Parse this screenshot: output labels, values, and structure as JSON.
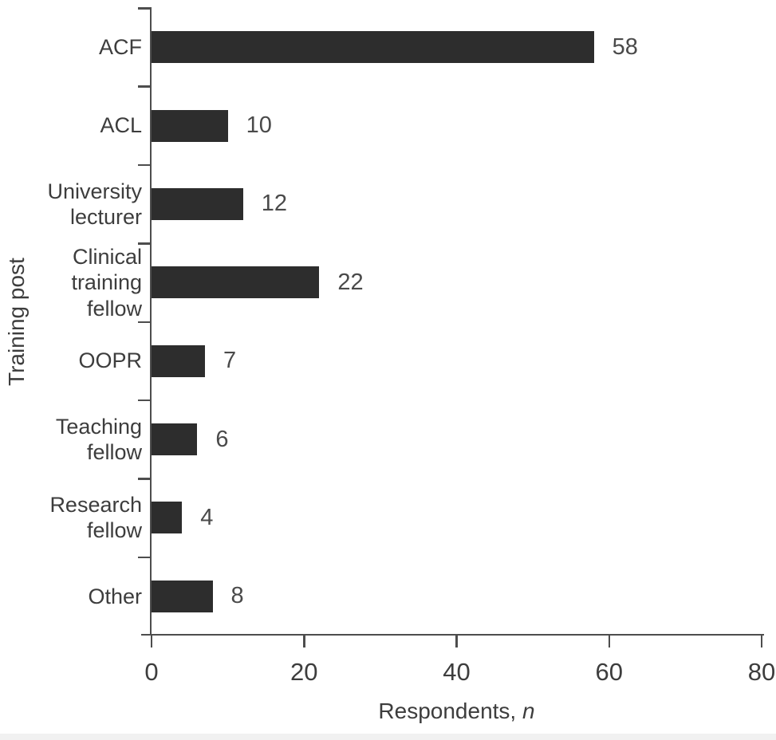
{
  "chart_data": {
    "type": "bar",
    "orientation": "horizontal",
    "categories": [
      "ACF",
      "ACL",
      "University lecturer",
      "Clinical training fellow",
      "OOPR",
      "Teaching fellow",
      "Research fellow",
      "Other"
    ],
    "values": [
      58,
      10,
      12,
      22,
      7,
      6,
      4,
      8
    ],
    "value_labels": [
      "58",
      "10",
      "12",
      "22",
      "7",
      "6",
      "4",
      "8"
    ],
    "title": "",
    "xlabel_text": "Respondents, ",
    "xlabel_symbol": "n",
    "ylabel": "Training post",
    "xlim": [
      0,
      80
    ],
    "x_ticks": [
      0,
      20,
      40,
      60,
      80
    ],
    "grid": false,
    "legend": "none",
    "bar_color": "#2d2d2d",
    "axis_color": "#4d4d4d",
    "text_color": "#3d3d3d"
  }
}
